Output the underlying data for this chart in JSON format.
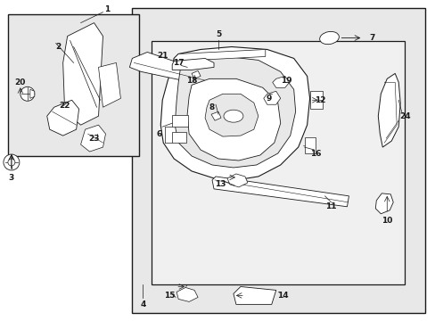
{
  "white": "#ffffff",
  "bg": "#e8e8e8",
  "dark": "#1a1a1a",
  "light_bg": "#ebebeb",
  "inner_bg": "#f0f0f0"
}
